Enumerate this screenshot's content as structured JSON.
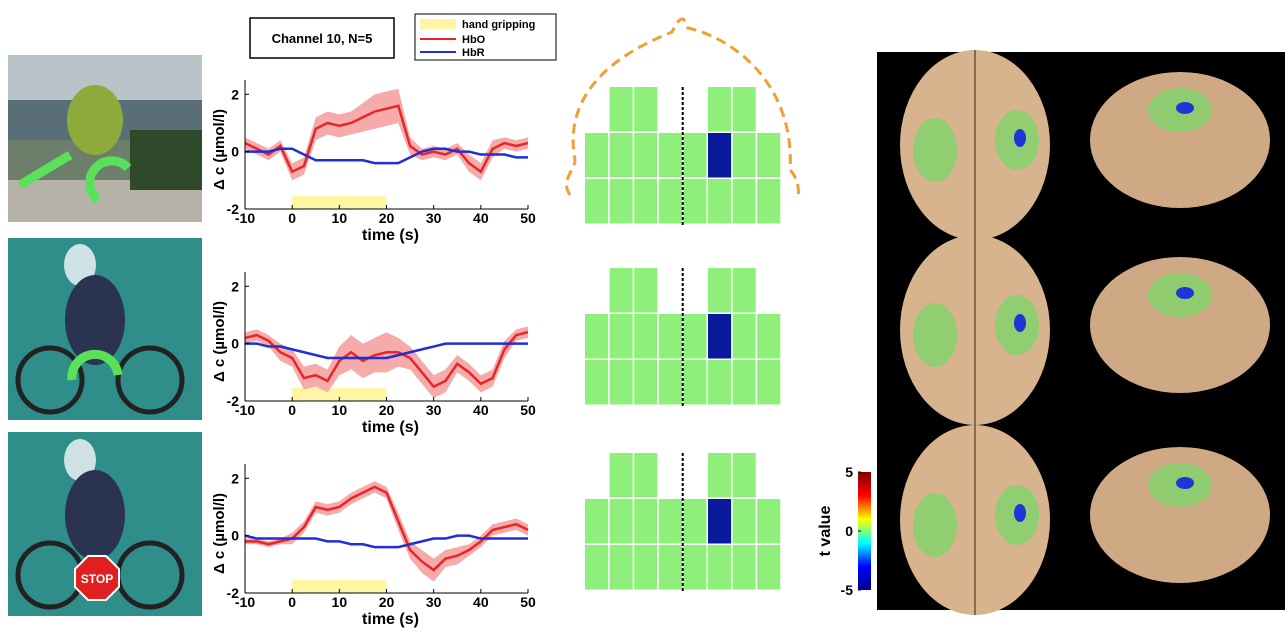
{
  "chart_data": [
    {
      "type": "line",
      "title": "Channel 10,  N=5",
      "xlabel": "time (s)",
      "ylabel": "Δ c (µmol/l)",
      "x": [
        -10,
        -7.5,
        -5,
        -2.5,
        0,
        2.5,
        5,
        7.5,
        10,
        12.5,
        15,
        17.5,
        20,
        22.5,
        25,
        27.5,
        30,
        32.5,
        35,
        37.5,
        40,
        42.5,
        45,
        47.5,
        50
      ],
      "xlim": [
        -10,
        50
      ],
      "xticks": [
        -10,
        0,
        10,
        20,
        30,
        40,
        50
      ],
      "ylim": [
        -2,
        2.5
      ],
      "yticks": [
        -2,
        0,
        2
      ],
      "stimulus": {
        "name": "hand gripping",
        "color": "#fff5a5",
        "x": [
          0,
          20
        ]
      },
      "series": [
        {
          "name": "HbO",
          "color": "#e8262a",
          "band_color": "#f6abab",
          "values": [
            0.3,
            0.1,
            -0.1,
            0.2,
            -0.7,
            -0.5,
            0.8,
            1.0,
            0.9,
            1.0,
            1.2,
            1.4,
            1.5,
            1.6,
            0.2,
            -0.1,
            0,
            -0.1,
            0.1,
            -0.4,
            -0.7,
            0.1,
            0.3,
            0.2,
            0.3
          ],
          "error": [
            0.2,
            0.2,
            0.2,
            0.2,
            0.3,
            0.3,
            0.4,
            0.4,
            0.4,
            0.4,
            0.5,
            0.6,
            0.6,
            0.6,
            0.3,
            0.2,
            0.2,
            0.2,
            0.2,
            0.3,
            0.3,
            0.3,
            0.2,
            0.2,
            0.2
          ]
        },
        {
          "name": "HbR",
          "color": "#1f2fd6",
          "values": [
            0,
            0,
            0,
            0.1,
            0.1,
            -0.1,
            -0.3,
            -0.3,
            -0.3,
            -0.3,
            -0.3,
            -0.4,
            -0.4,
            -0.4,
            -0.2,
            0,
            0.1,
            0.1,
            0,
            0,
            -0.1,
            -0.1,
            -0.1,
            -0.2,
            -0.2
          ]
        }
      ]
    },
    {
      "type": "line",
      "xlabel": "time (s)",
      "ylabel": "Δ c (µmol/l)",
      "x": [
        -10,
        -7.5,
        -5,
        -2.5,
        0,
        2.5,
        5,
        7.5,
        10,
        12.5,
        15,
        17.5,
        20,
        22.5,
        25,
        27.5,
        30,
        32.5,
        35,
        37.5,
        40,
        42.5,
        45,
        47.5,
        50
      ],
      "xlim": [
        -10,
        50
      ],
      "xticks": [
        -10,
        0,
        10,
        20,
        30,
        40,
        50
      ],
      "ylim": [
        -2,
        2.5
      ],
      "yticks": [
        -2,
        0,
        2
      ],
      "stimulus": {
        "color": "#fff5a5",
        "x": [
          0,
          20
        ]
      },
      "series": [
        {
          "color": "#e8262a",
          "band_color": "#f6abab",
          "values": [
            0.2,
            0.3,
            0.1,
            -0.3,
            -0.5,
            -1.2,
            -1.1,
            -1.3,
            -0.6,
            -0.3,
            -0.6,
            -0.4,
            -0.3,
            -0.3,
            -0.5,
            -1.0,
            -1.5,
            -1.3,
            -0.7,
            -1.0,
            -1.4,
            -1.2,
            -0.2,
            0.3,
            0.4
          ],
          "error": [
            0.2,
            0.2,
            0.2,
            0.3,
            0.3,
            0.4,
            0.4,
            0.4,
            0.5,
            0.6,
            0.6,
            0.6,
            0.7,
            0.5,
            0.4,
            0.4,
            0.4,
            0.4,
            0.3,
            0.3,
            0.3,
            0.3,
            0.3,
            0.2,
            0.2
          ]
        },
        {
          "color": "#1f2fd6",
          "values": [
            0,
            0,
            -0.1,
            -0.1,
            -0.2,
            -0.3,
            -0.4,
            -0.5,
            -0.5,
            -0.5,
            -0.5,
            -0.5,
            -0.5,
            -0.4,
            -0.3,
            -0.2,
            -0.1,
            0,
            0,
            0,
            0,
            0,
            0,
            0,
            0
          ]
        }
      ]
    },
    {
      "type": "line",
      "xlabel": "time (s)",
      "ylabel": "Δ c (µmol/l)",
      "x": [
        -10,
        -7.5,
        -5,
        -2.5,
        0,
        2.5,
        5,
        7.5,
        10,
        12.5,
        15,
        17.5,
        20,
        22.5,
        25,
        27.5,
        30,
        32.5,
        35,
        37.5,
        40,
        42.5,
        45,
        47.5,
        50
      ],
      "xlim": [
        -10,
        50
      ],
      "xticks": [
        -10,
        0,
        10,
        20,
        30,
        40,
        50
      ],
      "ylim": [
        -2,
        2.5
      ],
      "yticks": [
        -2,
        0,
        2
      ],
      "stimulus": {
        "color": "#fff5a5",
        "x": [
          0,
          20
        ]
      },
      "series": [
        {
          "color": "#e8262a",
          "band_color": "#f6abab",
          "values": [
            -0.2,
            -0.2,
            -0.3,
            -0.2,
            -0.1,
            0.3,
            1.0,
            0.9,
            1.0,
            1.3,
            1.5,
            1.7,
            1.5,
            0.5,
            -0.5,
            -0.9,
            -1.2,
            -0.8,
            -0.7,
            -0.5,
            -0.2,
            0.2,
            0.3,
            0.4,
            0.2
          ],
          "error": [
            0.1,
            0.1,
            0.1,
            0.1,
            0.2,
            0.2,
            0.2,
            0.2,
            0.2,
            0.2,
            0.2,
            0.2,
            0.2,
            0.3,
            0.3,
            0.4,
            0.4,
            0.3,
            0.3,
            0.2,
            0.2,
            0.2,
            0.2,
            0.2,
            0.2
          ]
        },
        {
          "color": "#1f2fd6",
          "values": [
            0,
            -0.1,
            -0.1,
            -0.1,
            -0.1,
            -0.1,
            -0.1,
            -0.2,
            -0.2,
            -0.3,
            -0.3,
            -0.4,
            -0.4,
            -0.4,
            -0.3,
            -0.2,
            -0.1,
            -0.1,
            0,
            0,
            -0.1,
            -0.1,
            -0.1,
            -0.1,
            -0.1
          ]
        }
      ]
    },
    {
      "type": "colorbar",
      "label": "t value",
      "ylim": [
        -5,
        5
      ],
      "yticks": [
        -5,
        0,
        5
      ],
      "colors": [
        "#00008f",
        "#0000ff",
        "#00ffff",
        "#ffff00",
        "#ff0000",
        "#800000"
      ]
    }
  ],
  "photos": {
    "stop_sign": "STOP"
  }
}
